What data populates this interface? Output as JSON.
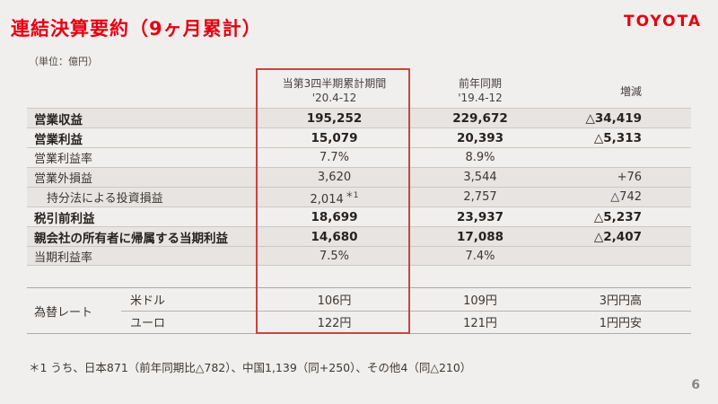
{
  "slide": {
    "title": "連結決算要約（9ヶ月累計）",
    "logo": "TOYOTA",
    "unit": "（単位：億円）",
    "footnote": "＊1 うち、日本871（前年同期比△782）、中国1,139（同+250）、その他4（同△210）",
    "page_number": "6"
  },
  "colors": {
    "brand_red": "#e60012",
    "box_red": "#c6453d",
    "shade": "#e7e4e1"
  },
  "table": {
    "headers": {
      "col1_line1": "当第3四半期累計期間",
      "col1_line2": "'20.4-12",
      "col2_line1": "前年同期",
      "col2_line2": "'19.4-12",
      "col3": "増減"
    },
    "rows": [
      {
        "label": "営業収益",
        "current": "195,252",
        "prior": "229,672",
        "change": "△34,419",
        "bold": true,
        "shade": true
      },
      {
        "label": "営業利益",
        "current": "15,079",
        "prior": "20,393",
        "change": "△5,313",
        "bold": true
      },
      {
        "label": "営業利益率",
        "current": "7.7%",
        "prior": "8.9%",
        "change": ""
      },
      {
        "label": "営業外損益",
        "current": "3,620",
        "prior": "3,544",
        "change": "+76",
        "shade": true
      },
      {
        "label": "持分法による投資損益",
        "current": "2,014",
        "note": "＊1",
        "prior": "2,757",
        "change": "△742",
        "indent": true,
        "shade": true
      },
      {
        "label": "税引前利益",
        "current": "18,699",
        "prior": "23,937",
        "change": "△5,237",
        "bold": true
      },
      {
        "label": "親会社の所有者に帰属する当期利益",
        "current": "14,680",
        "prior": "17,088",
        "change": "△2,407",
        "bold": true,
        "shade": true
      },
      {
        "label": "当期利益率",
        "current": "7.5%",
        "prior": "7.4%",
        "change": "",
        "shade": true
      }
    ],
    "fx": {
      "label": "為替レート",
      "rows": [
        {
          "currency": "米ドル",
          "current": "106円",
          "prior": "109円",
          "change": "3円円高"
        },
        {
          "currency": "ユーロ",
          "current": "122円",
          "prior": "121円",
          "change": "1円円安"
        }
      ]
    }
  }
}
